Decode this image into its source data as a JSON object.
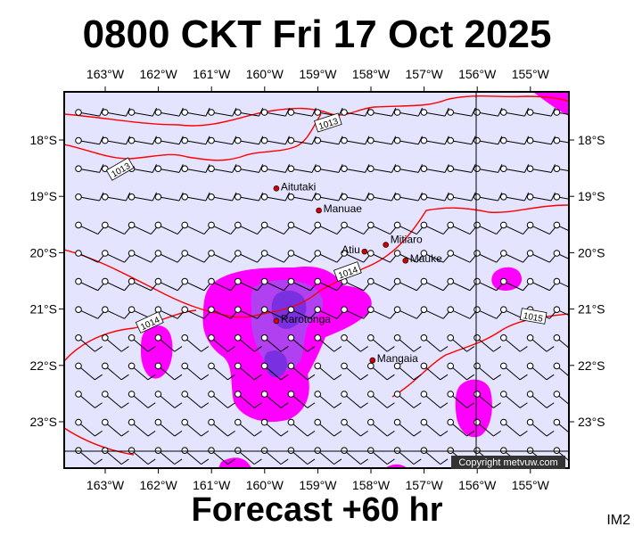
{
  "header": {
    "title": "0800 CKT Fri 17 Oct 2025"
  },
  "footer": {
    "forecast": "Forecast +60 hr",
    "code": "IM2",
    "copyright": "Copyright metvuw.com"
  },
  "axes": {
    "lon_labels": [
      "163°W",
      "162°W",
      "161°W",
      "160°W",
      "159°W",
      "158°W",
      "157°W",
      "156°W",
      "155°W"
    ],
    "lat_labels": [
      "18°S",
      "19°S",
      "20°S",
      "21°S",
      "22°S",
      "23°S"
    ]
  },
  "colors": {
    "map_background": "#e4e4ff",
    "rain_light": "#ff00ff",
    "rain_heavy": "#8a2be2",
    "isobar": "#ff0000"
  },
  "isobar_labels": [
    "1013",
    "1013",
    "1014",
    "1014",
    "1015"
  ],
  "towns": [
    {
      "name": "Aitutaki",
      "lon": -159.78,
      "lat": -18.86
    },
    {
      "name": "Manuae",
      "lon": -158.98,
      "lat": -19.25
    },
    {
      "name": "Mitiaro",
      "lon": -157.72,
      "lat": -19.86
    },
    {
      "name": "Atiu",
      "lon": -158.12,
      "lat": -19.98
    },
    {
      "name": "Mauke",
      "lon": -157.35,
      "lat": -20.14
    },
    {
      "name": "Rarotonga",
      "lon": -159.78,
      "lat": -21.21
    },
    {
      "name": "Mangaia",
      "lon": -157.97,
      "lat": -21.91
    }
  ]
}
